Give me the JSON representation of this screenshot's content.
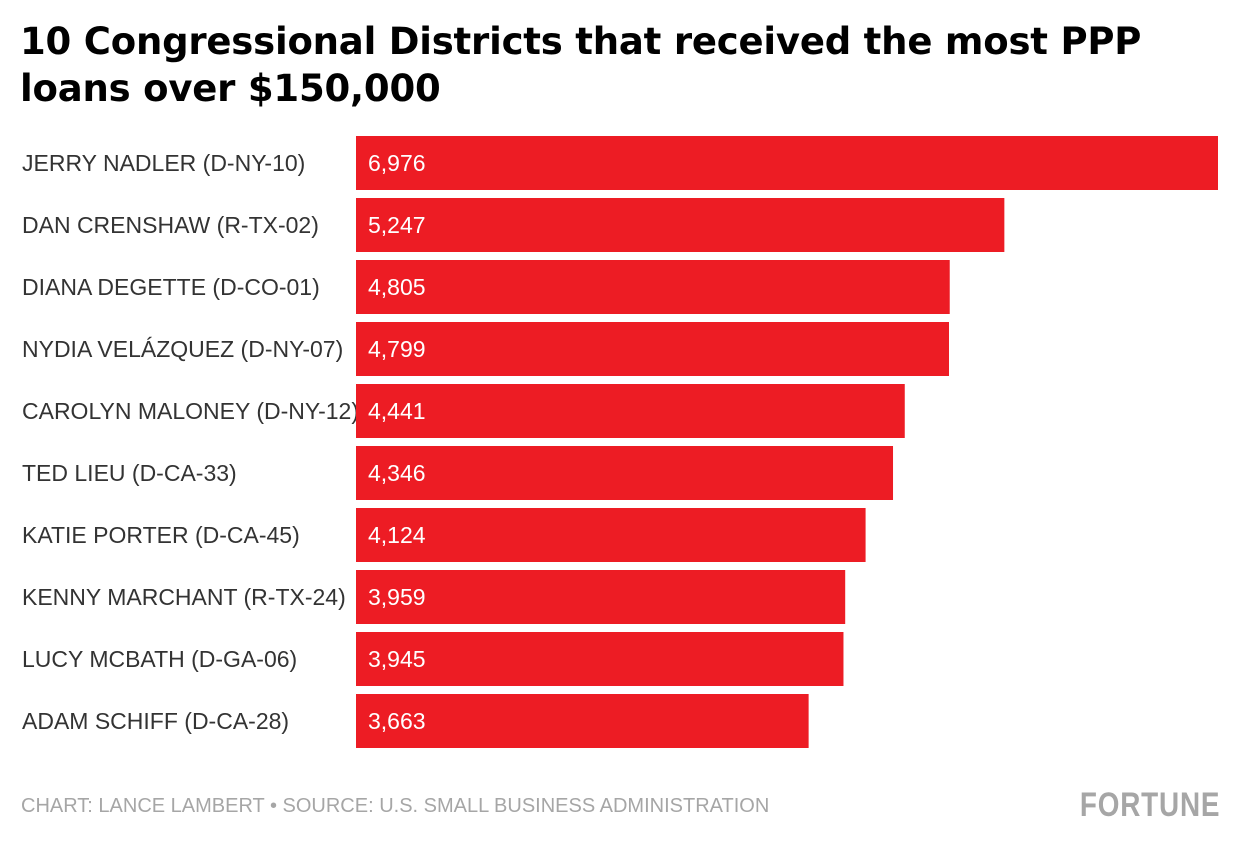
{
  "chart_data": {
    "type": "bar",
    "orientation": "horizontal",
    "title": "10 Congressional Districts that received the most PPP loans over $150,000",
    "xlabel": "",
    "ylabel": "",
    "categories": [
      "JERRY NADLER (D-NY-10)",
      "DAN CRENSHAW (R-TX-02)",
      "DIANA DEGETTE (D-CO-01)",
      "NYDIA VELÁZQUEZ (D-NY-07)",
      "CAROLYN MALONEY (D-NY-12)",
      "TED LIEU (D-CA-33)",
      "KATIE PORTER (D-CA-45)",
      "KENNY MARCHANT (R-TX-24)",
      "LUCY MCBATH (D-GA-06)",
      "ADAM SCHIFF (D-CA-28)"
    ],
    "values": [
      6976,
      5247,
      4805,
      4799,
      4441,
      4346,
      4124,
      3959,
      3945,
      3663
    ],
    "value_labels": [
      "6,976",
      "5,247",
      "4,805",
      "4,799",
      "4,441",
      "4,346",
      "4,124",
      "3,959",
      "3,945",
      "3,663"
    ],
    "xlim": [
      0,
      6976
    ],
    "grid": false,
    "legend": "none",
    "bar_color": "#ed1c24"
  },
  "header": {
    "title": "10 Congressional Districts that received the most PPP loans over $150,000"
  },
  "footer": {
    "credit": "CHART: LANCE LAMBERT • SOURCE: U.S. SMALL BUSINESS ADMINISTRATION",
    "logo": "FORTUNE"
  },
  "colors": {
    "bar": "#ed1c24",
    "label": "#333333",
    "value": "#ffffff",
    "footer": "#a6a6a6"
  }
}
